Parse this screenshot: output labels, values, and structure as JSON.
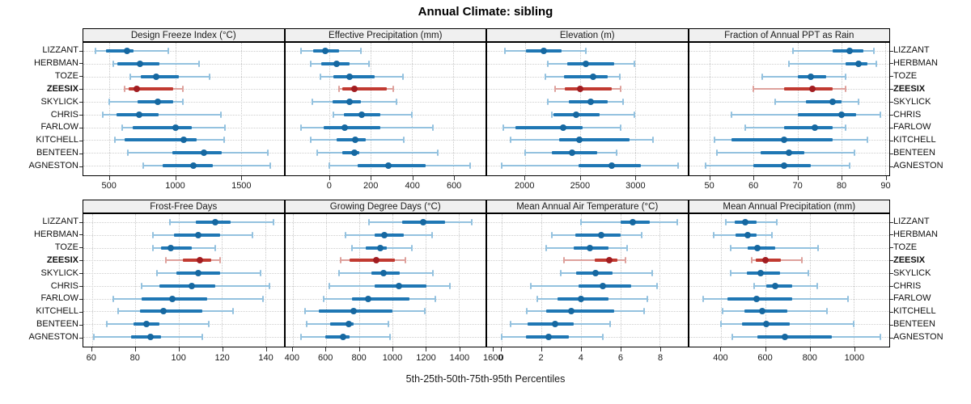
{
  "title": "Annual Climate: sibling",
  "caption": "5th-25th-50th-75th-95th Percentiles",
  "stations": [
    "LIZZANT",
    "HERBMAN",
    "TOZE",
    "ZEESIX",
    "SKYLICK",
    "CHRIS",
    "FARLOW",
    "KITCHELL",
    "BENTEEN",
    "AGNESTON"
  ],
  "highlight_station": "ZEESIX",
  "colors": {
    "normal_whisker": "#94c2df",
    "normal_box": "#1f77b4",
    "normal_dot": "#1668a1",
    "highlight_whisker": "#dea19c",
    "highlight_box": "#c13a31",
    "highlight_dot": "#a21d21",
    "strip_bg": "#f0f0f0",
    "grid": "#cccccc"
  },
  "chart_data": [
    {
      "type": "dot-whisker-percentiles",
      "title": "Design Freeze Index (°C)",
      "percentiles": [
        "5th",
        "25th",
        "50th",
        "75th",
        "95th"
      ],
      "xlim": [
        300,
        1825
      ],
      "ticks": [
        500,
        1000,
        1500
      ],
      "values": {
        "LIZZANT": [
          390,
          470,
          635,
          680,
          945
        ],
        "HERBMAN": [
          530,
          560,
          730,
          880,
          1180
        ],
        "TOZE": [
          655,
          740,
          855,
          1025,
          1260
        ],
        "ZEESIX": [
          615,
          645,
          705,
          985,
          1060
        ],
        "SKYLICK": [
          500,
          715,
          865,
          985,
          1060
        ],
        "CHRIS": [
          445,
          550,
          725,
          875,
          1350
        ],
        "FARLOW": [
          595,
          675,
          1005,
          1125,
          1380
        ],
        "KITCHELL": [
          540,
          615,
          1065,
          1165,
          1375
        ],
        "BENTEEN": [
          640,
          975,
          1215,
          1355,
          1705
        ],
        "AGNESTON": [
          755,
          905,
          1135,
          1285,
          1725
        ]
      }
    },
    {
      "type": "dot-whisker-percentiles",
      "title": "Effective Precipitation (mm)",
      "percentiles": [
        "5th",
        "25th",
        "50th",
        "75th",
        "95th"
      ],
      "xlim": [
        -215,
        755
      ],
      "ticks": [
        0,
        200,
        400,
        600
      ],
      "values": {
        "LIZZANT": [
          -140,
          -80,
          -20,
          45,
          150
        ],
        "HERBMAN": [
          -90,
          -40,
          35,
          95,
          190
        ],
        "TOZE": [
          -45,
          20,
          95,
          220,
          355
        ],
        "ZEESIX": [
          45,
          60,
          120,
          275,
          310
        ],
        "SKYLICK": [
          -85,
          15,
          95,
          150,
          325
        ],
        "CHRIS": [
          20,
          70,
          155,
          245,
          400
        ],
        "FARLOW": [
          -140,
          -30,
          75,
          245,
          500
        ],
        "KITCHELL": [
          -90,
          35,
          125,
          175,
          360
        ],
        "BENTEEN": [
          -60,
          60,
          120,
          145,
          525
        ],
        "AGNESTON": [
          0,
          135,
          285,
          465,
          680
        ]
      }
    },
    {
      "type": "dot-whisker-percentiles",
      "title": "Elevation (m)",
      "percentiles": [
        "5th",
        "25th",
        "50th",
        "75th",
        "95th"
      ],
      "xlim": [
        1655,
        3475
      ],
      "ticks": [
        2000,
        2500,
        3000
      ],
      "values": {
        "LIZZANT": [
          1815,
          2005,
          2170,
          2335,
          2550
        ],
        "HERBMAN": [
          2210,
          2380,
          2555,
          2810,
          2990
        ],
        "TOZE": [
          2185,
          2350,
          2615,
          2750,
          2860
        ],
        "ZEESIX": [
          2270,
          2360,
          2500,
          2790,
          2870
        ],
        "SKYLICK": [
          2210,
          2400,
          2595,
          2750,
          2890
        ],
        "CHRIS": [
          2240,
          2255,
          2465,
          2680,
          2990
        ],
        "FARLOW": [
          1805,
          1910,
          2345,
          2520,
          2870
        ],
        "KITCHELL": [
          1870,
          2310,
          2495,
          2950,
          3165
        ],
        "BENTEEN": [
          2000,
          2240,
          2425,
          2655,
          2835
        ],
        "AGNESTON": [
          1785,
          2485,
          2785,
          3055,
          3390
        ]
      }
    },
    {
      "type": "dot-whisker-percentiles",
      "title": "Fraction of Annual PPT as Rain",
      "percentiles": [
        "5th",
        "25th",
        "50th",
        "75th",
        "95th"
      ],
      "xlim": [
        45.2,
        91
      ],
      "ticks": [
        50,
        60,
        70,
        80,
        90
      ],
      "values": {
        "LIZZANT": [
          69,
          78,
          82,
          85,
          87.5
        ],
        "HERBMAN": [
          68,
          81,
          84,
          86,
          88
        ],
        "TOZE": [
          62,
          70,
          73,
          76.5,
          81
        ],
        "ZEESIX": [
          60,
          67,
          73.5,
          78,
          81
        ],
        "SKYLICK": [
          65,
          72,
          78,
          80,
          84
        ],
        "CHRIS": [
          55,
          70,
          80,
          83.5,
          89
        ],
        "FARLOW": [
          58,
          67,
          74,
          78,
          81
        ],
        "KITCHELL": [
          51,
          55,
          67,
          78,
          86
        ],
        "BENTEEN": [
          51.5,
          61.5,
          68,
          71.5,
          83
        ],
        "AGNESTON": [
          49,
          60,
          67,
          73,
          82
        ]
      }
    },
    {
      "type": "dot-whisker-percentiles",
      "title": "Frost-Free Days",
      "percentiles": [
        "5th",
        "25th",
        "50th",
        "75th",
        "95th"
      ],
      "xlim": [
        56,
        148.5
      ],
      "ticks": [
        60,
        80,
        100,
        120,
        140
      ],
      "values": {
        "LIZZANT": [
          96,
          108,
          117,
          124,
          144
        ],
        "HERBMAN": [
          88,
          98,
          109,
          119,
          134
        ],
        "TOZE": [
          88,
          92,
          96.5,
          106,
          117
        ],
        "ZEESIX": [
          94,
          102,
          110,
          115,
          119
        ],
        "SKYLICK": [
          90,
          99,
          109,
          119,
          138
        ],
        "CHRIS": [
          83,
          91,
          106,
          117,
          142
        ],
        "FARLOW": [
          70,
          83,
          97,
          113,
          139
        ],
        "KITCHELL": [
          72,
          82,
          93,
          111,
          125
        ],
        "BENTEEN": [
          67,
          79,
          85,
          91,
          114
        ],
        "AGNESTON": [
          61,
          78,
          87,
          92,
          111
        ]
      }
    },
    {
      "type": "dot-whisker-percentiles",
      "title": "Growing Degree Days (°C)",
      "percentiles": [
        "5th",
        "25th",
        "50th",
        "75th",
        "95th"
      ],
      "xlim": [
        355,
        1560
      ],
      "ticks": [
        400,
        600,
        800,
        1000,
        1200,
        1400,
        1600
      ],
      "values": {
        "LIZZANT": [
          860,
          1060,
          1185,
          1315,
          1475
        ],
        "HERBMAN": [
          720,
          895,
          950,
          1070,
          1240
        ],
        "TOZE": [
          755,
          840,
          925,
          965,
          1115
        ],
        "ZEESIX": [
          690,
          740,
          905,
          1015,
          1080
        ],
        "SKYLICK": [
          680,
          875,
          945,
          1045,
          1245
        ],
        "CHRIS": [
          620,
          895,
          1040,
          1205,
          1345
        ],
        "FARLOW": [
          585,
          755,
          855,
          1100,
          1260
        ],
        "KITCHELL": [
          475,
          555,
          765,
          1000,
          1195
        ],
        "BENTEEN": [
          485,
          625,
          735,
          765,
          975
        ],
        "AGNESTON": [
          450,
          595,
          705,
          740,
          985
        ]
      }
    },
    {
      "type": "dot-whisker-percentiles",
      "title": "Mean Annual Air Temperature (°C)",
      "percentiles": [
        "5th",
        "25th",
        "50th",
        "75th",
        "95th"
      ],
      "xlim": [
        -0.75,
        9.4
      ],
      "ticks": [
        0,
        2,
        4,
        6,
        8
      ],
      "values": {
        "LIZZANT": [
          4.0,
          6.0,
          6.65,
          7.5,
          8.9
        ],
        "HERBMAN": [
          2.55,
          3.7,
          5.05,
          6.0,
          7.1
        ],
        "TOZE": [
          2.25,
          3.65,
          4.45,
          5.4,
          6.35
        ],
        "ZEESIX": [
          3.15,
          4.7,
          5.45,
          5.85,
          6.25
        ],
        "SKYLICK": [
          3.0,
          3.75,
          4.75,
          5.6,
          7.6
        ],
        "CHRIS": [
          1.45,
          3.9,
          5.1,
          6.55,
          7.85
        ],
        "FARLOW": [
          1.8,
          2.8,
          4.0,
          5.4,
          7.35
        ],
        "KITCHELL": [
          1.25,
          2.25,
          3.5,
          5.7,
          7.2
        ],
        "BENTEEN": [
          0.45,
          1.3,
          2.7,
          3.65,
          5.5
        ],
        "AGNESTON": [
          0.0,
          1.2,
          2.35,
          3.4,
          5.1
        ]
      }
    },
    {
      "type": "dot-whisker-percentiles",
      "title": "Mean Annual Precipitation (mm)",
      "percentiles": [
        "5th",
        "25th",
        "50th",
        "75th",
        "95th"
      ],
      "xlim": [
        255,
        1160
      ],
      "ticks": [
        400,
        600,
        800,
        1000
      ],
      "values": {
        "LIZZANT": [
          420,
          460,
          510,
          560,
          650
        ],
        "HERBMAN": [
          365,
          465,
          520,
          560,
          630
        ],
        "TOZE": [
          445,
          520,
          565,
          645,
          840
        ],
        "ZEESIX": [
          540,
          555,
          600,
          670,
          765
        ],
        "SKYLICK": [
          445,
          515,
          580,
          665,
          795
        ],
        "CHRIS": [
          550,
          605,
          645,
          720,
          835
        ],
        "FARLOW": [
          320,
          430,
          560,
          720,
          975
        ],
        "KITCHELL": [
          405,
          505,
          585,
          700,
          880
        ],
        "BENTEEN": [
          400,
          495,
          605,
          710,
          1000
        ],
        "AGNESTON": [
          450,
          565,
          690,
          900,
          1120
        ]
      }
    }
  ]
}
